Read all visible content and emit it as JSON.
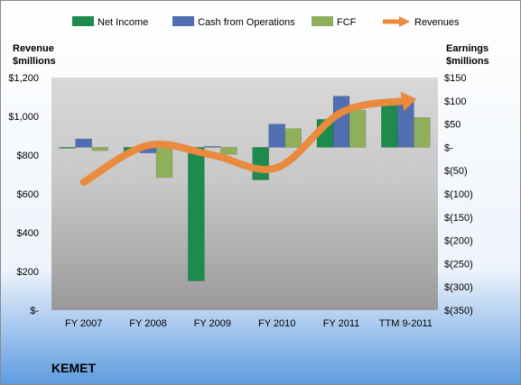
{
  "chart_data": {
    "type": "bar",
    "title": "KEMET",
    "categories": [
      "FY 2007",
      "FY 2008",
      "FY 2009",
      "FY 2010",
      "FY 2011",
      "TTM 9-2011"
    ],
    "series": [
      {
        "name": "Net Income",
        "axis": "right",
        "kind": "bar",
        "color": "#1E8B4E",
        "values": [
          -2,
          -8,
          -287,
          -70,
          60,
          95
        ]
      },
      {
        "name": "Cash from Operations",
        "axis": "right",
        "kind": "bar",
        "color": "#4F6FB0",
        "values": [
          18,
          -12,
          2,
          50,
          110,
          106
        ]
      },
      {
        "name": "FCF",
        "axis": "right",
        "kind": "bar",
        "color": "#8FAF5A",
        "values": [
          -7,
          -65,
          -15,
          40,
          80,
          64
        ]
      },
      {
        "name": "Revenues",
        "axis": "left",
        "kind": "line",
        "color": "#E98A3D",
        "values": [
          660,
          850,
          800,
          735,
          1020,
          1080
        ]
      }
    ],
    "left_axis": {
      "label_line1": "Revenue",
      "label_line2": "$millions",
      "min": 0,
      "max": 1200,
      "ticks": [
        {
          "value": 1200,
          "label": "$1,200"
        },
        {
          "value": 1000,
          "label": "$1,000"
        },
        {
          "value": 800,
          "label": "$800"
        },
        {
          "value": 600,
          "label": "$600"
        },
        {
          "value": 400,
          "label": "$400"
        },
        {
          "value": 200,
          "label": "$200"
        },
        {
          "value": 0,
          "label": "$-"
        }
      ]
    },
    "right_axis": {
      "label_line1": "Earnings",
      "label_line2": "$millions",
      "min": -350,
      "max": 150,
      "ticks": [
        {
          "value": 150,
          "label": "$150"
        },
        {
          "value": 100,
          "label": "$100"
        },
        {
          "value": 50,
          "label": "$50"
        },
        {
          "value": 0,
          "label": "$-"
        },
        {
          "value": -50,
          "label": "$(50)"
        },
        {
          "value": -100,
          "label": "$(100)"
        },
        {
          "value": -150,
          "label": "$(150)"
        },
        {
          "value": -200,
          "label": "$(200)"
        },
        {
          "value": -250,
          "label": "$(250)"
        },
        {
          "value": -300,
          "label": "$(300)"
        },
        {
          "value": -350,
          "label": "$(350)"
        }
      ]
    },
    "legend_position": "top",
    "grid": false
  }
}
